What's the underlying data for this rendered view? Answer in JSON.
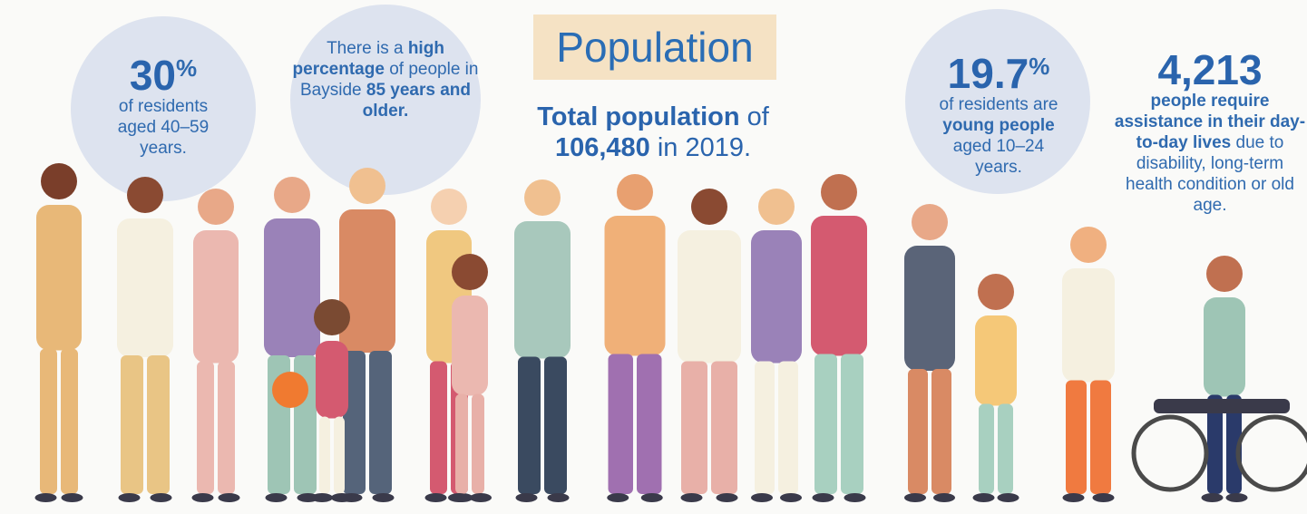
{
  "title": "Population",
  "total": {
    "label": "Total population",
    "of": "of",
    "number": "106,480",
    "year": "in 2019."
  },
  "stats": [
    {
      "value": "30",
      "unit": "%",
      "text": "of residents aged 40–59 years."
    },
    {
      "parts": [
        "There is a",
        "high percentage",
        "of people in Bayside",
        "85 years and older."
      ]
    },
    {
      "value": "19.7",
      "unit": "%",
      "parts": [
        "of residents are",
        "young people",
        "aged 10–24 years."
      ]
    },
    {
      "value": "4,213",
      "parts": [
        "people require assistance in their day-to-day lives",
        "due to disability, long-term health condition or old age."
      ]
    }
  ]
}
